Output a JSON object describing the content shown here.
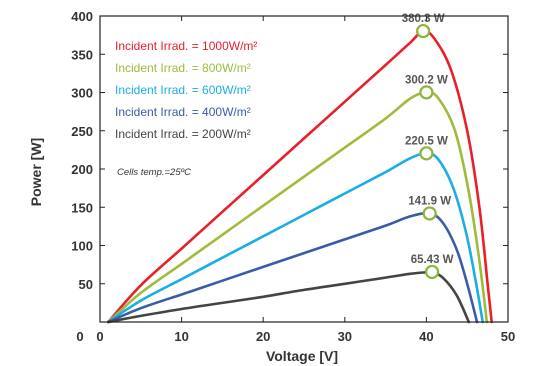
{
  "chart_data": {
    "type": "line",
    "xlabel": "Voltage [V]",
    "ylabel": "Power [W]",
    "xlim": [
      0,
      50
    ],
    "ylim": [
      0,
      400
    ],
    "xticks": [
      0,
      10,
      20,
      30,
      40,
      50
    ],
    "yticks": [
      50,
      100,
      150,
      200,
      250,
      300,
      350,
      400
    ],
    "grid": false,
    "legend_position": "top-left",
    "note": "Cells temp.=25ºC",
    "series": [
      {
        "name": "Incident Irrad. = 1000W/m²",
        "color": "#e8202a",
        "x": [
          1,
          5,
          10,
          15,
          20,
          25,
          30,
          35,
          38,
          39.6,
          41,
          43,
          45,
          46.5,
          47.5,
          48
        ],
        "y": [
          0,
          48,
          96,
          144,
          192,
          240,
          288,
          336,
          365,
          380.3,
          370,
          330,
          250,
          150,
          50,
          0
        ],
        "mpp": {
          "x": 39.6,
          "y": 380.3,
          "label": "380.3 W"
        }
      },
      {
        "name": "Incident Irrad. = 800W/m²",
        "color": "#9ebc3a",
        "x": [
          1,
          5,
          10,
          15,
          20,
          25,
          30,
          35,
          38,
          40,
          41.5,
          43.5,
          45.2,
          46.5,
          47.4
        ],
        "y": [
          0,
          38,
          76,
          114,
          152,
          190,
          228,
          266,
          292,
          300.2,
          292,
          250,
          170,
          80,
          0
        ],
        "mpp": {
          "x": 40,
          "y": 300.2,
          "label": "300.2 W"
        }
      },
      {
        "name": "Incident Irrad. = 600W/m²",
        "color": "#1aaee5",
        "x": [
          1,
          5,
          10,
          15,
          20,
          25,
          30,
          35,
          38,
          40,
          41.5,
          43.3,
          44.9,
          46.1,
          46.9
        ],
        "y": [
          0,
          28,
          56,
          84,
          112,
          140,
          168,
          196,
          214,
          220.5,
          212,
          175,
          115,
          50,
          0
        ],
        "mpp": {
          "x": 40,
          "y": 220.5,
          "label": "220.5  W"
        }
      },
      {
        "name": "Incident Irrad. = 400W/m²",
        "color": "#3a5ca8",
        "x": [
          1,
          5,
          10,
          15,
          20,
          25,
          30,
          35,
          38,
          40.4,
          42,
          43.7,
          45,
          46.2
        ],
        "y": [
          0,
          18,
          36,
          54,
          72,
          90,
          108,
          126,
          138,
          141.9,
          130,
          95,
          50,
          0
        ],
        "mpp": {
          "x": 40.4,
          "y": 141.9,
          "label": "141.9 W"
        }
      },
      {
        "name": "Incident Irrad. = 200W/m²",
        "color": "#444444",
        "x": [
          1,
          5,
          10,
          15,
          20,
          25,
          30,
          35,
          38,
          40,
          40.7,
          42,
          43.7,
          45.2
        ],
        "y": [
          0,
          8,
          17,
          25,
          33,
          42,
          50,
          58,
          63,
          65,
          65.43,
          58,
          35,
          0
        ],
        "mpp": {
          "x": 40.7,
          "y": 65.43,
          "label": "65.43 W"
        }
      }
    ]
  }
}
